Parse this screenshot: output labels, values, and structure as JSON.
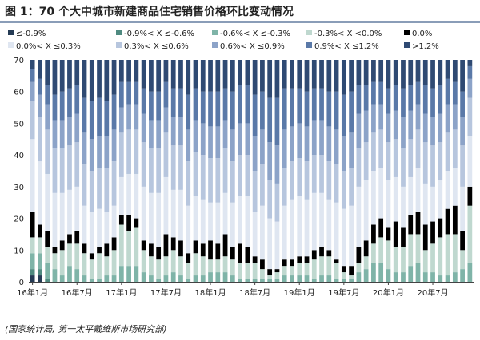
{
  "title": "图 1：70 个大中城市新建商品住宅销售价格环比变动情况",
  "source": "(国家统计局, 第一太平戴维斯市场研究部)",
  "chart_data": {
    "type": "bar",
    "stacked": true,
    "ylim": [
      0,
      70
    ],
    "yticks": [
      0,
      10,
      20,
      30,
      40,
      50,
      60,
      70
    ],
    "grid": false,
    "legend_position": "top",
    "x_tick_labels": [
      "16年1月",
      "16年7月",
      "17年1月",
      "17年7月",
      "18年1月",
      "18年7月",
      "19年1月",
      "19年7月",
      "20年1月",
      "20年7月"
    ],
    "x": [
      "2016-01",
      "2016-02",
      "2016-03",
      "2016-04",
      "2016-05",
      "2016-06",
      "2016-07",
      "2016-08",
      "2016-09",
      "2016-10",
      "2016-11",
      "2016-12",
      "2017-01",
      "2017-02",
      "2017-03",
      "2017-04",
      "2017-05",
      "2017-06",
      "2017-07",
      "2017-08",
      "2017-09",
      "2017-10",
      "2017-11",
      "2017-12",
      "2018-01",
      "2018-02",
      "2018-03",
      "2018-04",
      "2018-05",
      "2018-06",
      "2018-07",
      "2018-08",
      "2018-09",
      "2018-10",
      "2018-11",
      "2018-12",
      "2019-01",
      "2019-02",
      "2019-03",
      "2019-04",
      "2019-05",
      "2019-06",
      "2019-07",
      "2019-08",
      "2019-09",
      "2019-10",
      "2019-11",
      "2019-12",
      "2020-01",
      "2020-02",
      "2020-03",
      "2020-04",
      "2020-05",
      "2020-06",
      "2020-07",
      "2020-08",
      "2020-09",
      "2020-10",
      "2020-11",
      "2020-12"
    ],
    "series": [
      {
        "name": "≤-0.9%",
        "color": "#253b55",
        "values": [
          2,
          2,
          0,
          0,
          0,
          0,
          0,
          0,
          0,
          0,
          0,
          0,
          0,
          0,
          0,
          0,
          0,
          0,
          0,
          0,
          0,
          0,
          0,
          0,
          0,
          0,
          0,
          0,
          0,
          0,
          0,
          0,
          0,
          0,
          0,
          0,
          0,
          0,
          0,
          0,
          0,
          0,
          0,
          0,
          0,
          0,
          0,
          0,
          0,
          0,
          0,
          0,
          0,
          0,
          0,
          0,
          0,
          0,
          0,
          0
        ]
      },
      {
        "name": "-0.9%< X ≤-0.6%",
        "color": "#4f8a80",
        "values": [
          2,
          2,
          1,
          0,
          0,
          0,
          0,
          0,
          0,
          0,
          0,
          0,
          0,
          0,
          0,
          0,
          0,
          0,
          0,
          0,
          0,
          0,
          0,
          0,
          0,
          0,
          0,
          0,
          0,
          0,
          0,
          0,
          0,
          0,
          0,
          0,
          0,
          0,
          0,
          0,
          0,
          0,
          0,
          0,
          0,
          0,
          0,
          0,
          0,
          0,
          0,
          0,
          0,
          0,
          0,
          0,
          0,
          0,
          0,
          0
        ]
      },
      {
        "name": "-0.6%< X ≤-0.3%",
        "color": "#7fb4a8",
        "values": [
          5,
          5,
          5,
          4,
          2,
          5,
          4,
          2,
          1,
          1,
          2,
          2,
          5,
          5,
          5,
          3,
          2,
          1,
          2,
          3,
          2,
          1,
          2,
          2,
          3,
          3,
          3,
          2,
          1,
          1,
          1,
          1,
          1,
          1,
          2,
          2,
          2,
          2,
          1,
          2,
          2,
          1,
          1,
          1,
          3,
          4,
          6,
          6,
          4,
          3,
          3,
          5,
          6,
          3,
          3,
          2,
          2,
          3,
          4,
          6
        ]
      },
      {
        "name": "-0.3%< X <0.0%",
        "color": "#bfd8cf",
        "values": [
          5,
          5,
          5,
          5,
          8,
          7,
          8,
          7,
          6,
          8,
          6,
          8,
          13,
          11,
          12,
          7,
          6,
          6,
          6,
          7,
          6,
          5,
          7,
          6,
          4,
          4,
          5,
          5,
          5,
          5,
          5,
          3,
          1,
          2,
          3,
          3,
          4,
          4,
          6,
          6,
          6,
          5,
          2,
          1,
          3,
          4,
          6,
          8,
          9,
          8,
          8,
          10,
          9,
          7,
          9,
          12,
          13,
          12,
          6,
          18
        ]
      },
      {
        "name": "0.0%",
        "color": "#000000",
        "values": [
          8,
          4,
          5,
          2,
          3,
          3,
          4,
          3,
          2,
          2,
          4,
          4,
          3,
          5,
          3,
          3,
          4,
          4,
          7,
          4,
          5,
          3,
          4,
          4,
          6,
          5,
          7,
          4,
          6,
          5,
          2,
          3,
          2,
          1,
          2,
          2,
          2,
          2,
          3,
          3,
          2,
          1,
          2,
          3,
          5,
          5,
          6,
          6,
          4,
          8,
          6,
          6,
          7,
          8,
          7,
          6,
          8,
          9,
          6,
          6
        ]
      },
      {
        "name": "0.0%< X ≤0.3%",
        "color": "#dfe6f1",
        "values": [
          23,
          20,
          18,
          17,
          15,
          14,
          14,
          12,
          13,
          12,
          10,
          10,
          12,
          13,
          14,
          17,
          16,
          17,
          18,
          15,
          16,
          15,
          14,
          14,
          12,
          13,
          13,
          14,
          15,
          16,
          14,
          17,
          16,
          15,
          17,
          19,
          19,
          18,
          18,
          17,
          16,
          18,
          18,
          19,
          19,
          19,
          17,
          16,
          15,
          14,
          13,
          12,
          14,
          13,
          11,
          12,
          12,
          12,
          14,
          16
        ]
      },
      {
        "name": "0.3%< X ≤0.6%",
        "color": "#b7c6de",
        "values": [
          12,
          14,
          14,
          14,
          14,
          14,
          14,
          13,
          13,
          13,
          14,
          14,
          14,
          14,
          14,
          14,
          14,
          14,
          14,
          14,
          14,
          14,
          14,
          14,
          14,
          14,
          14,
          13,
          13,
          13,
          13,
          13,
          12,
          12,
          12,
          12,
          12,
          12,
          12,
          12,
          12,
          12,
          12,
          12,
          12,
          12,
          12,
          12,
          12,
          12,
          12,
          12,
          12,
          13,
          13,
          12,
          12,
          12,
          13,
          12
        ]
      },
      {
        "name": "0.6%< X ≤0.9%",
        "color": "#8ca3c8",
        "values": [
          6,
          7,
          8,
          9,
          9,
          9,
          9,
          10,
          10,
          10,
          10,
          10,
          8,
          8,
          8,
          9,
          9,
          9,
          8,
          9,
          9,
          10,
          10,
          10,
          10,
          10,
          9,
          10,
          10,
          10,
          11,
          11,
          12,
          12,
          12,
          11,
          11,
          11,
          11,
          11,
          11,
          11,
          11,
          11,
          11,
          10,
          9,
          8,
          9,
          9,
          10,
          9,
          8,
          9,
          9,
          9,
          9,
          8,
          9,
          6
        ]
      },
      {
        "name": "0.9%< X ≤1.2%",
        "color": "#5a79a8",
        "values": [
          4,
          5,
          6,
          8,
          9,
          9,
          9,
          11,
          12,
          12,
          11,
          11,
          8,
          7,
          7,
          8,
          9,
          9,
          8,
          9,
          9,
          11,
          10,
          10,
          11,
          11,
          10,
          12,
          12,
          12,
          13,
          12,
          14,
          15,
          13,
          12,
          11,
          11,
          10,
          10,
          11,
          12,
          13,
          13,
          9,
          8,
          7,
          7,
          8,
          8,
          9,
          8,
          7,
          9,
          9,
          9,
          8,
          7,
          8,
          4
        ]
      },
      {
        "name": ">1.2%",
        "color": "#2f4a73",
        "values": [
          3,
          6,
          8,
          11,
          10,
          9,
          8,
          12,
          13,
          12,
          13,
          11,
          7,
          7,
          7,
          9,
          10,
          10,
          7,
          9,
          9,
          11,
          9,
          10,
          10,
          10,
          9,
          10,
          8,
          8,
          11,
          10,
          12,
          12,
          9,
          9,
          9,
          10,
          9,
          9,
          10,
          10,
          11,
          10,
          8,
          8,
          7,
          7,
          9,
          8,
          9,
          8,
          7,
          8,
          9,
          8,
          6,
          7,
          10,
          2
        ]
      }
    ]
  }
}
